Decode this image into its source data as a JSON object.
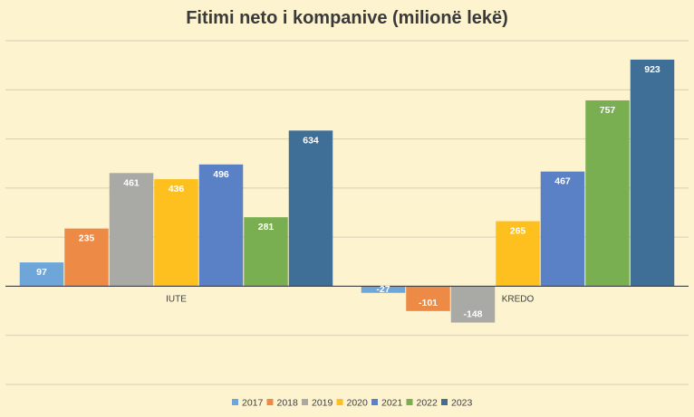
{
  "chart_data": {
    "type": "bar",
    "title": "Fitimi neto i kompanive (milionë lekë)",
    "categories": [
      "IUTE",
      "KREDO"
    ],
    "series": [
      {
        "name": "2017",
        "color": "#6fa6d9",
        "values": [
          97,
          -27
        ]
      },
      {
        "name": "2018",
        "color": "#ed8a45",
        "values": [
          235,
          -101
        ]
      },
      {
        "name": "2019",
        "color": "#a9a9a6",
        "values": [
          461,
          -148
        ]
      },
      {
        "name": "2020",
        "color": "#fdc01f",
        "values": [
          436,
          265
        ]
      },
      {
        "name": "2021",
        "color": "#5a80c6",
        "values": [
          496,
          467
        ]
      },
      {
        "name": "2022",
        "color": "#79af50",
        "values": [
          281,
          757
        ]
      },
      {
        "name": "2023",
        "color": "#3f6e97",
        "values": [
          634,
          923
        ]
      }
    ],
    "ylim": [
      -400,
      1000
    ],
    "grid": true,
    "legend_position": "bottom"
  }
}
